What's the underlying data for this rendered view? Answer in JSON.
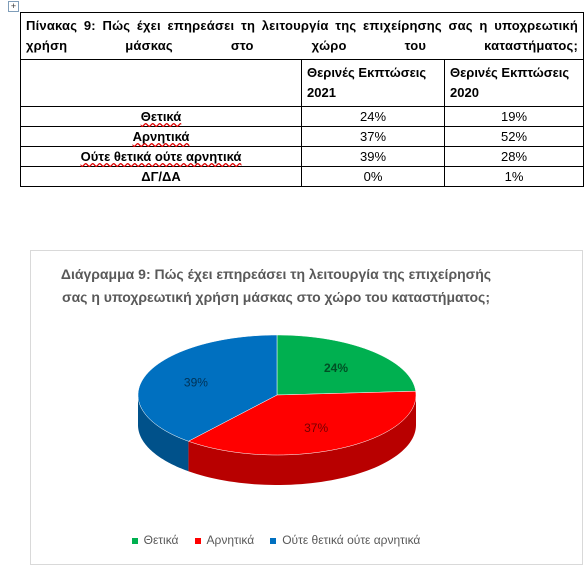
{
  "table": {
    "title": "Πίνακας 9: Πώς έχει επηρεάσει τη λειτουργία της επιχείρησης σας η υποχρεωτική χρήση μάσκας στο χώρο του καταστήματος;",
    "header": [
      "Θερινές Εκπτώσεις 2021",
      "Θερινές Εκπτώσεις 2020"
    ],
    "rows": [
      [
        "Θετικά",
        "24%",
        "19%"
      ],
      [
        "Αρνητικά",
        "37%",
        "52%"
      ],
      [
        "Ούτε θετικά ούτε αρνητικά",
        "39%",
        "28%"
      ],
      [
        "ΔΓ/ΔΑ",
        "0%",
        "1%"
      ]
    ]
  },
  "chart_data": {
    "type": "pie",
    "title": "Διάγραμμα 9: Πώς έχει επηρεάσει τη λειτουργία της επιχείρησής σας η υποχρεωτική χρήση μάσκας στο χώρο του καταστήματος;",
    "categories": [
      "Θετικά",
      "Αρνητικά",
      "Ούτε θετικά ούτε αρνητικά"
    ],
    "values": [
      24,
      37,
      39
    ],
    "value_labels": [
      "24%",
      "37%",
      "39%"
    ],
    "colors": [
      "#00b050",
      "#ff0000",
      "#0070c0"
    ]
  }
}
